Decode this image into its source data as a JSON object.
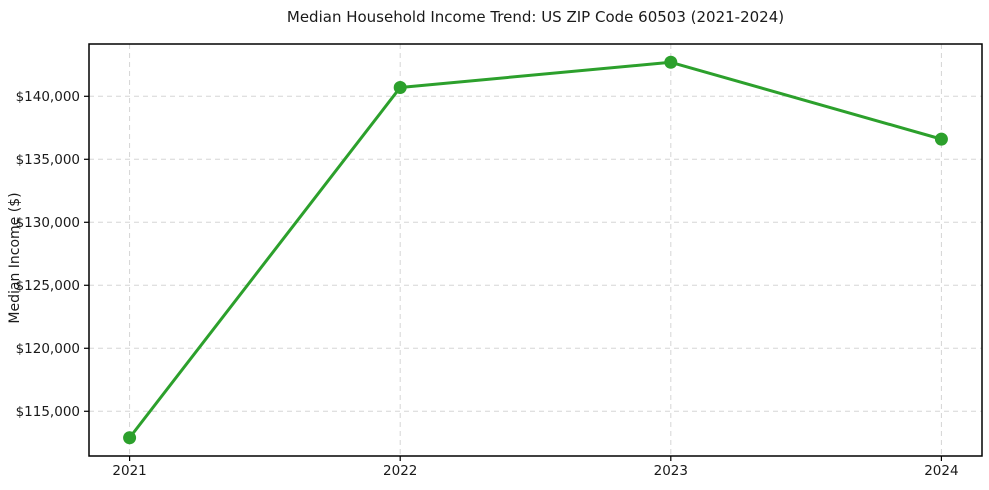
{
  "chart_data": {
    "type": "line",
    "title": "Median Household Income Trend: US ZIP Code 60503 (2021-2024)",
    "ylabel": "Median Income ($)",
    "xlabel": "",
    "x": [
      2021,
      2022,
      2023,
      2024
    ],
    "x_tick_labels": [
      "2021",
      "2022",
      "2023",
      "2024"
    ],
    "series": [
      {
        "name": "Median Household Income",
        "values": [
          112900,
          140700,
          142700,
          136600
        ]
      }
    ],
    "y_ticks": [
      115000,
      120000,
      125000,
      130000,
      135000,
      140000
    ],
    "y_tick_labels": [
      "$115,000",
      "$120,000",
      "$125,000",
      "$130,000",
      "$135,000",
      "$140,000"
    ],
    "xlim": [
      2020.85,
      2024.15
    ],
    "ylim": [
      111450,
      144150
    ],
    "grid": true,
    "grid_style": "dashed",
    "legend": "none",
    "line_color": "#2ca02c",
    "marker": "circle",
    "marker_color": "#2ca02c",
    "grid_color": "#d5d5d5",
    "spine_color": "#000000",
    "text_color": "#1a1a1a",
    "background": "#ffffff"
  }
}
